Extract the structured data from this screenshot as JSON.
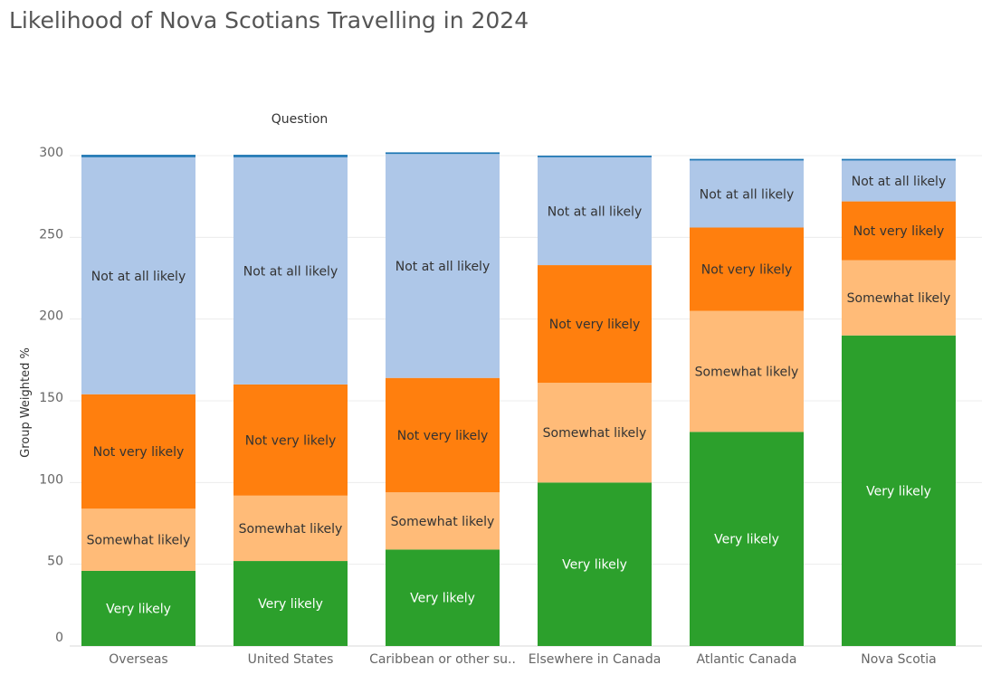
{
  "chart_data": {
    "type": "bar",
    "stacked": true,
    "title": "Likelihood of Nova Scotians Travelling in 2024",
    "column_header": "Question",
    "ylabel": "Group Weighted %",
    "xlabel": "",
    "ylim": [
      0,
      300
    ],
    "yticks": [
      0,
      50,
      100,
      150,
      200,
      250,
      300
    ],
    "grid": true,
    "legend": "none",
    "categories": [
      "Overseas",
      "United States",
      "Caribbean or other su..",
      "Elsewhere in Canada",
      "Atlantic Canada",
      "Nova Scotia"
    ],
    "series": [
      {
        "name": "Very likely",
        "color": "#2ca02c",
        "label_color": "#ffffff",
        "values": [
          46,
          52,
          59,
          100,
          131,
          190
        ]
      },
      {
        "name": "Somewhat likely",
        "color": "#ffbb78",
        "label_color": "#333333",
        "values": [
          38,
          40,
          35,
          61,
          74,
          46
        ]
      },
      {
        "name": "Not very likely",
        "color": "#ff7f0e",
        "label_color": "#333333",
        "values": [
          70,
          68,
          70,
          72,
          51,
          36
        ]
      },
      {
        "name": "Not at all likely",
        "color": "#aec7e8",
        "label_color": "#333333",
        "values": [
          145,
          139,
          137,
          66,
          41,
          25
        ]
      },
      {
        "name": "",
        "color": "#1f77b4",
        "label_color": "#333333",
        "values": [
          1.5,
          1.5,
          1,
          1,
          1,
          1
        ],
        "show_label": false
      }
    ]
  }
}
